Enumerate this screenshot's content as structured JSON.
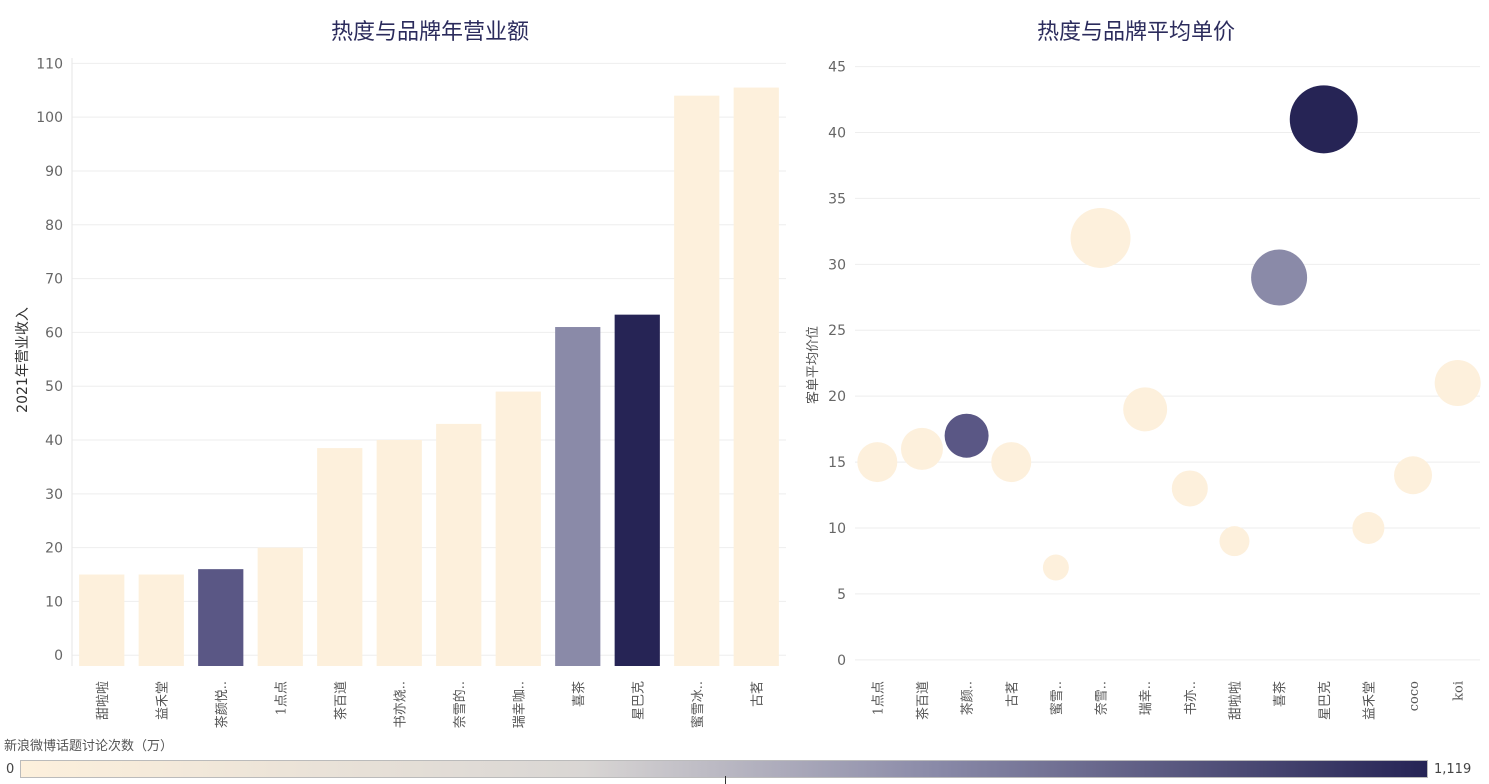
{
  "legend": {
    "title": "新浪微博话题讨论次数（万）",
    "min_label": "0",
    "max_label": "1,119",
    "min": 0,
    "max": 1119,
    "colors": [
      "#fdf0dc",
      "#262455"
    ]
  },
  "chart_data": [
    {
      "type": "bar",
      "title": "热度与品牌年营业额",
      "ylabel": "2021年营业收入",
      "xlabel": "",
      "ylim": [
        -2,
        111
      ],
      "yticks": [
        0,
        10,
        20,
        30,
        40,
        50,
        60,
        70,
        80,
        90,
        100,
        110
      ],
      "categories": [
        "甜啦啦",
        "益禾堂",
        "茶颜悦..",
        "1点点",
        "茶百道",
        "书亦烧..",
        "奈雪的..",
        "瑞幸咖..",
        "喜茶",
        "星巴克",
        "蜜雪冰..",
        "古茗"
      ],
      "values": [
        15,
        15,
        16,
        20,
        38.5,
        40,
        43,
        49,
        61,
        63.3,
        104,
        105.5
      ],
      "colors": [
        "#fdf0dc",
        "#fdf0dc",
        "#5a5785",
        "#fdf0dc",
        "#fdf0dc",
        "#fdf0dc",
        "#fdf0dc",
        "#fdf0dc",
        "#8a8aa8",
        "#262455",
        "#fdf0dc",
        "#fdf0dc"
      ],
      "grid": true
    },
    {
      "type": "scatter",
      "title": "热度与品牌平均单价",
      "ylabel": "客单平均价位",
      "xlabel": "",
      "ylim": [
        -1,
        45.5
      ],
      "yticks": [
        0,
        5,
        10,
        15,
        20,
        25,
        30,
        35,
        40,
        45
      ],
      "categories": [
        "1点点",
        "茶百道",
        "茶颜..",
        "古茗",
        "蜜雪..",
        "奈雪..",
        "瑞幸..",
        "书亦..",
        "甜啦啦",
        "喜茶",
        "星巴克",
        "益禾堂",
        "coco",
        "koi"
      ],
      "values": [
        15,
        16,
        17,
        15,
        7,
        32,
        19,
        13,
        9,
        29,
        41,
        10,
        14,
        21
      ],
      "sizes": [
        20,
        21,
        22,
        20,
        13,
        30,
        22,
        18,
        15,
        28,
        34,
        16,
        19,
        23
      ],
      "colors": [
        "#fdf0dc",
        "#fdf0dc",
        "#5a5785",
        "#fdf0dc",
        "#fdf0dc",
        "#fdf0dc",
        "#fdf0dc",
        "#fdf0dc",
        "#fdf0dc",
        "#8a8aa8",
        "#262455",
        "#fdf0dc",
        "#fdf0dc",
        "#fdf0dc"
      ],
      "grid": true
    }
  ]
}
